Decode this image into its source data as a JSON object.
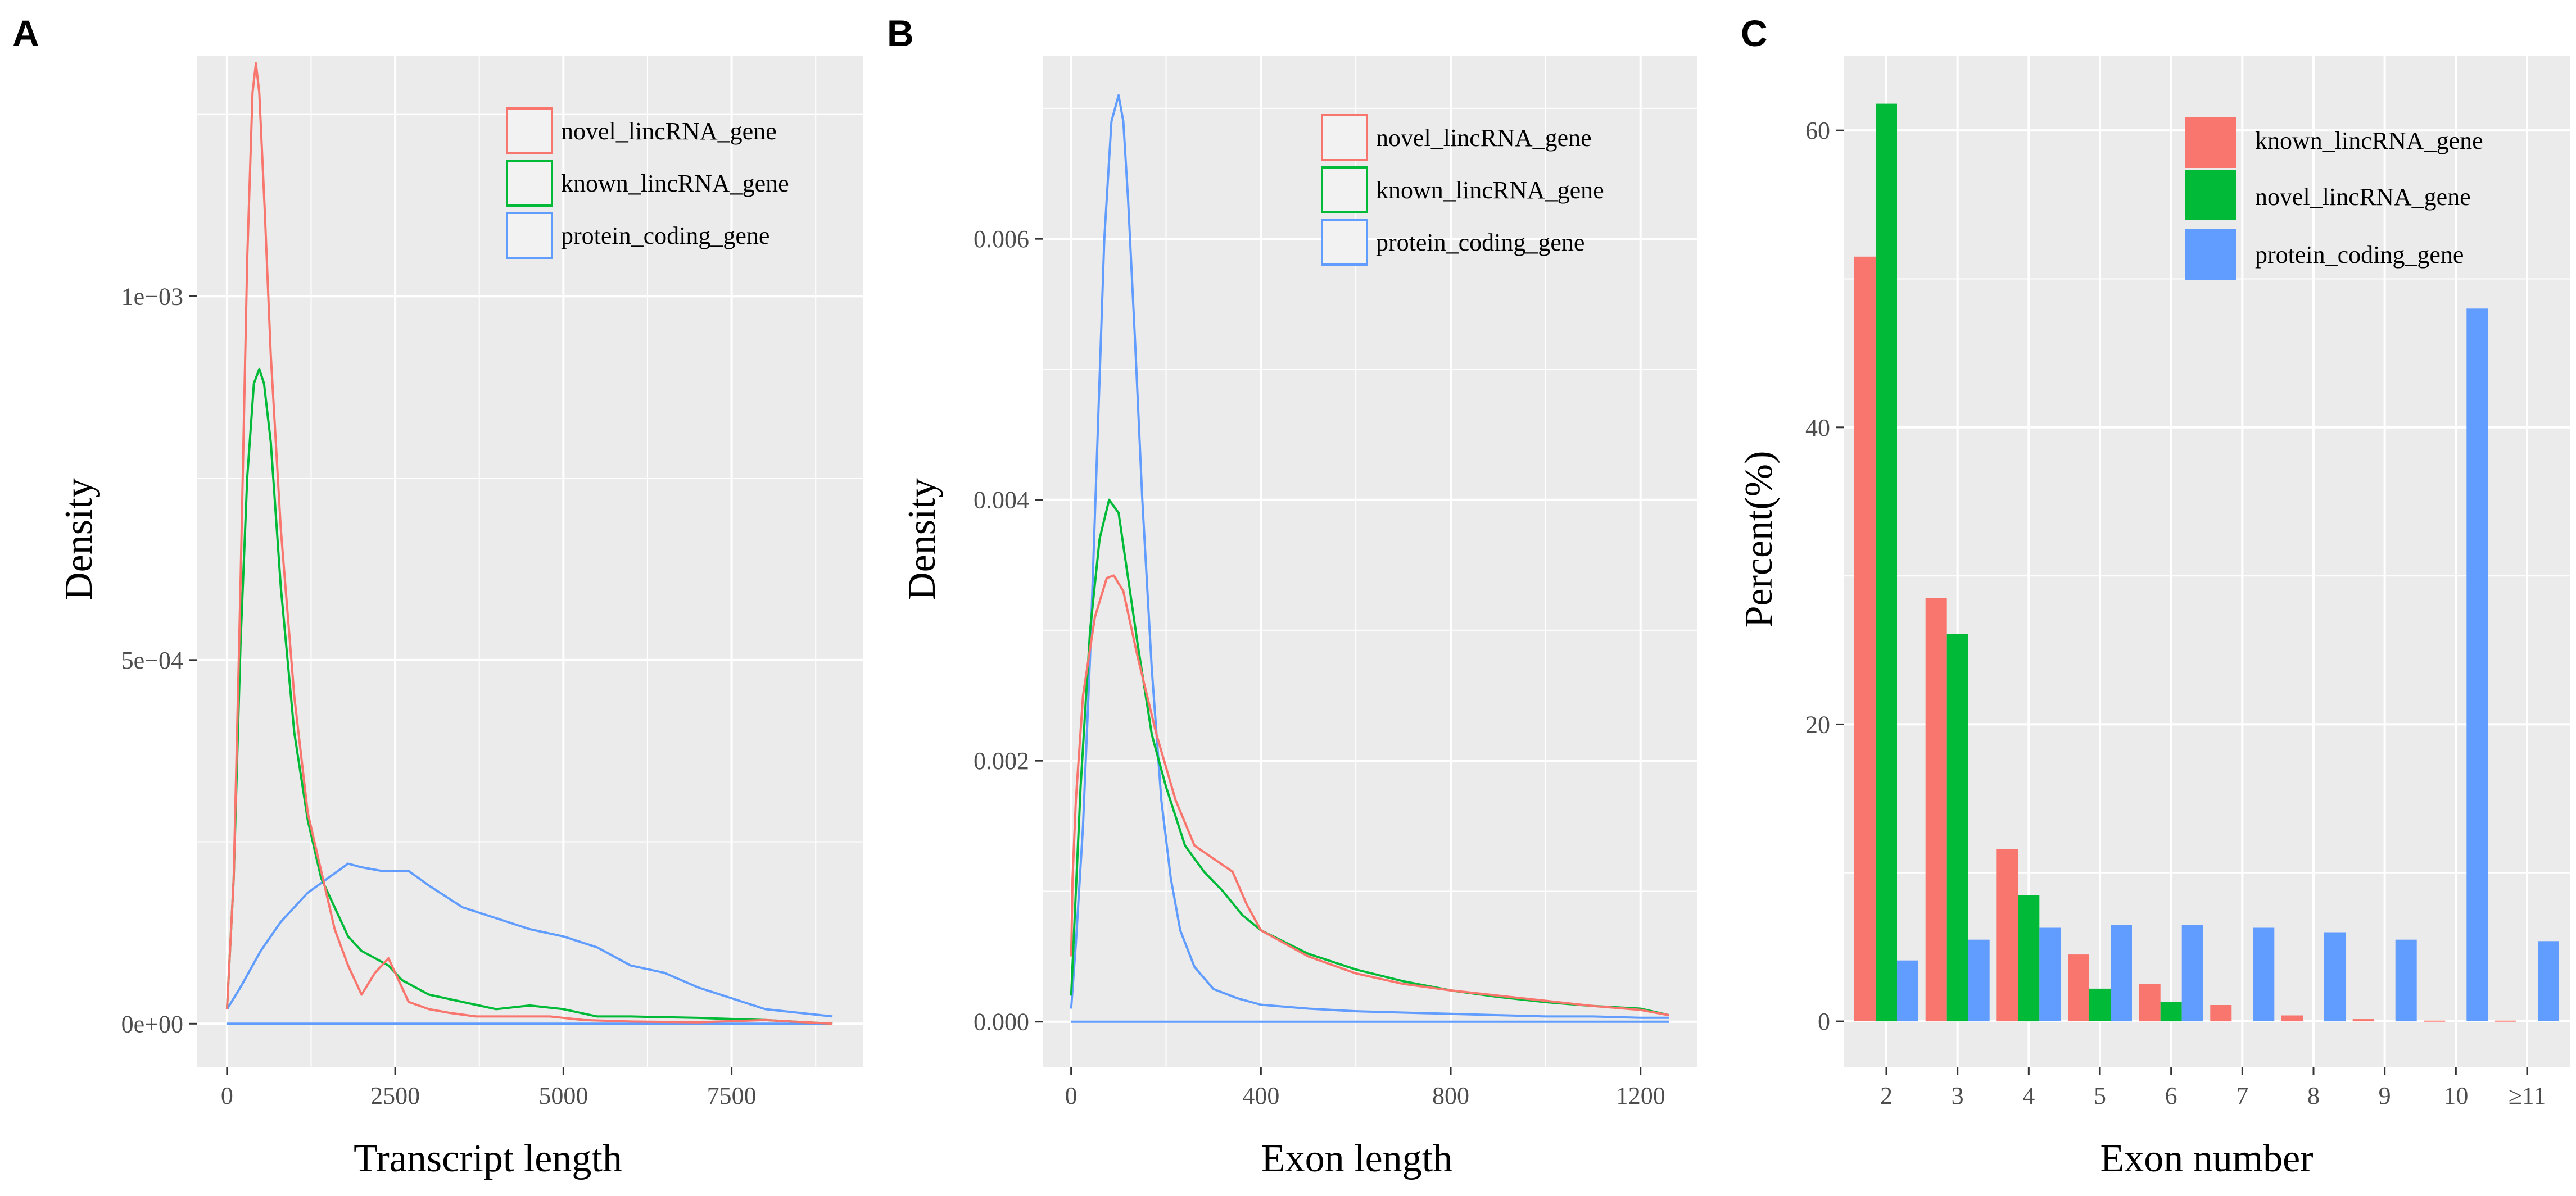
{
  "figure": {
    "panels": [
      "A",
      "B",
      "C"
    ]
  },
  "colors": {
    "red": "#F8766D",
    "green": "#00BA38",
    "blue": "#619CFF",
    "panel_bg": "#EBEBEB",
    "grid": "#FFFFFF"
  },
  "chart_data": [
    {
      "panel": "A",
      "type": "line",
      "title": "",
      "xlabel": "Transcript length",
      "ylabel": "Density",
      "xlim": [
        -450,
        9450
      ],
      "ylim": [
        -6e-05,
        0.00133
      ],
      "xticks": [
        0,
        2500,
        5000,
        7500
      ],
      "xtick_labels": [
        "0",
        "2500",
        "5000",
        "7500"
      ],
      "yticks": [
        0,
        0.0005,
        0.001
      ],
      "ytick_labels": [
        "0e+00",
        "5e−04",
        "1e−03"
      ],
      "legend": [
        "novel_lincRNA_gene",
        "known_lincRNA_gene",
        "protein_coding_gene"
      ],
      "legend_position": "top-right",
      "series": [
        {
          "name": "novel_lincRNA_gene",
          "color": "#F8766D",
          "x": [
            0,
            100,
            200,
            300,
            380,
            430,
            480,
            560,
            650,
            800,
            1000,
            1200,
            1400,
            1600,
            1800,
            2000,
            2200,
            2400,
            2500,
            2700,
            3000,
            3300,
            3700,
            4200,
            4800,
            5300,
            6000,
            7000,
            8000,
            9000
          ],
          "y": [
            2e-05,
            0.0002,
            0.0006,
            0.00105,
            0.00128,
            0.00132,
            0.00128,
            0.00112,
            0.00092,
            0.00068,
            0.00045,
            0.00029,
            0.00021,
            0.00013,
            8e-05,
            4e-05,
            7e-05,
            9e-05,
            7e-05,
            3e-05,
            2e-05,
            1.5e-05,
            1e-05,
            1e-05,
            1e-05,
            5e-06,
            3e-06,
            2e-06,
            5e-06,
            0.0
          ]
        },
        {
          "name": "known_lincRNA_gene",
          "color": "#00BA38",
          "x": [
            0,
            100,
            200,
            300,
            400,
            480,
            550,
            650,
            800,
            1000,
            1200,
            1400,
            1600,
            1800,
            2000,
            2200,
            2400,
            2600,
            3000,
            3500,
            4000,
            4500,
            5000,
            5500,
            6000,
            7000,
            8000,
            9000
          ],
          "y": [
            2e-05,
            0.0002,
            0.00052,
            0.00075,
            0.00088,
            0.0009,
            0.00088,
            0.0008,
            0.0006,
            0.0004,
            0.00028,
            0.0002,
            0.00016,
            0.00012,
            0.0001,
            9e-05,
            8e-05,
            6e-05,
            4e-05,
            3e-05,
            2e-05,
            2.5e-05,
            2e-05,
            1e-05,
            1e-05,
            8e-06,
            5e-06,
            0.0
          ]
        },
        {
          "name": "protein_coding_gene",
          "color": "#619CFF",
          "x": [
            0,
            200,
            500,
            800,
            1200,
            1500,
            1800,
            2000,
            2300,
            2700,
            3000,
            3500,
            4000,
            4500,
            5000,
            5500,
            6000,
            6500,
            7000,
            7500,
            8000,
            8500,
            9000
          ],
          "y": [
            2e-05,
            5e-05,
            0.0001,
            0.00014,
            0.00018,
            0.0002,
            0.00022,
            0.000215,
            0.00021,
            0.00021,
            0.00019,
            0.00016,
            0.000145,
            0.00013,
            0.00012,
            0.000105,
            8e-05,
            7e-05,
            5e-05,
            3.5e-05,
            2e-05,
            1.5e-05,
            1e-05
          ]
        },
        {
          "name": "baseline",
          "color": "#619CFF",
          "x": [
            0,
            9000
          ],
          "y": [
            0.0,
            0.0
          ]
        }
      ]
    },
    {
      "panel": "B",
      "type": "line",
      "title": "",
      "xlabel": "Exon length",
      "ylabel": "Density",
      "xlim": [
        -60,
        1320
      ],
      "ylim": [
        -0.00035,
        0.0074
      ],
      "xticks": [
        0,
        400,
        800,
        1200
      ],
      "xtick_labels": [
        "0",
        "400",
        "800",
        "1200"
      ],
      "yticks": [
        0,
        0.002,
        0.004,
        0.006
      ],
      "ytick_labels": [
        "0.000",
        "0.002",
        "0.004",
        "0.006"
      ],
      "legend": [
        "novel_lincRNA_gene",
        "known_lincRNA_gene",
        "protein_coding_gene"
      ],
      "legend_position": "top-right",
      "series": [
        {
          "name": "novel_lincRNA_gene",
          "color": "#F8766D",
          "x": [
            0,
            3,
            10,
            25,
            50,
            75,
            90,
            110,
            140,
            180,
            220,
            260,
            300,
            340,
            370,
            400,
            500,
            600,
            700,
            800,
            900,
            1000,
            1100,
            1200,
            1260
          ],
          "y": [
            0.0005,
            0.0011,
            0.0017,
            0.0025,
            0.0031,
            0.0034,
            0.00342,
            0.0033,
            0.0028,
            0.0022,
            0.0017,
            0.00135,
            0.00125,
            0.00115,
            0.0009,
            0.0007,
            0.0005,
            0.00037,
            0.00029,
            0.00024,
            0.0002,
            0.00016,
            0.00012,
            9e-05,
            5e-05
          ]
        },
        {
          "name": "known_lincRNA_gene",
          "color": "#00BA38",
          "x": [
            0,
            5,
            20,
            40,
            60,
            80,
            100,
            120,
            140,
            170,
            200,
            240,
            280,
            320,
            360,
            400,
            500,
            600,
            700,
            800,
            900,
            1000,
            1100,
            1200,
            1260
          ],
          "y": [
            0.0002,
            0.0006,
            0.0018,
            0.003,
            0.0037,
            0.004,
            0.0039,
            0.0034,
            0.0029,
            0.0022,
            0.0018,
            0.00135,
            0.00115,
            0.001,
            0.00082,
            0.0007,
            0.00052,
            0.0004,
            0.00031,
            0.00024,
            0.00019,
            0.00015,
            0.00012,
            0.0001,
            5e-05
          ]
        },
        {
          "name": "protein_coding_gene",
          "color": "#619CFF",
          "x": [
            0,
            10,
            25,
            40,
            55,
            70,
            85,
            100,
            110,
            120,
            135,
            150,
            170,
            190,
            210,
            230,
            260,
            300,
            350,
            400,
            500,
            600,
            700,
            800,
            900,
            1000,
            1100,
            1200,
            1260
          ],
          "y": [
            0.0001,
            0.0006,
            0.0015,
            0.0028,
            0.0044,
            0.006,
            0.0069,
            0.0071,
            0.0069,
            0.0063,
            0.0052,
            0.004,
            0.0027,
            0.0017,
            0.0011,
            0.0007,
            0.00042,
            0.00025,
            0.00018,
            0.00013,
            0.0001,
            8e-05,
            7e-05,
            6e-05,
            5e-05,
            4e-05,
            4e-05,
            3e-05,
            3e-05
          ]
        },
        {
          "name": "baseline",
          "color": "#619CFF",
          "x": [
            0,
            1260
          ],
          "y": [
            0.0,
            0.0
          ]
        }
      ]
    },
    {
      "panel": "C",
      "type": "bar",
      "title": "",
      "xlabel": "Exon number",
      "ylabel": "Percent(%)",
      "ylim": [
        -3.1,
        65
      ],
      "yticks": [
        0,
        20,
        40,
        60
      ],
      "ytick_labels": [
        "0",
        "20",
        "40",
        "60"
      ],
      "categories": [
        "2",
        "3",
        "4",
        "5",
        "6",
        "7",
        "8",
        "9",
        "10",
        "≥11"
      ],
      "legend": [
        "known_lincRNA_gene",
        "novel_lincRNA_gene",
        "protein_coding_gene"
      ],
      "legend_position": "top-right",
      "series": [
        {
          "name": "known_lincRNA_gene",
          "color": "#F8766D",
          "values": [
            51.5,
            28.5,
            11.6,
            4.5,
            2.5,
            1.1,
            0.4,
            0.15,
            0.05,
            0.05
          ]
        },
        {
          "name": "novel_lincRNA_gene",
          "color": "#00BA38",
          "values": [
            61.8,
            26.1,
            8.5,
            2.2,
            1.3,
            0.0,
            0.0,
            0.0,
            0.0,
            0.0
          ]
        },
        {
          "name": "protein_coding_gene",
          "color": "#619CFF",
          "values": [
            4.1,
            5.5,
            6.3,
            6.5,
            6.5,
            6.3,
            6.0,
            5.5,
            48.0,
            5.4
          ]
        }
      ]
    }
  ]
}
